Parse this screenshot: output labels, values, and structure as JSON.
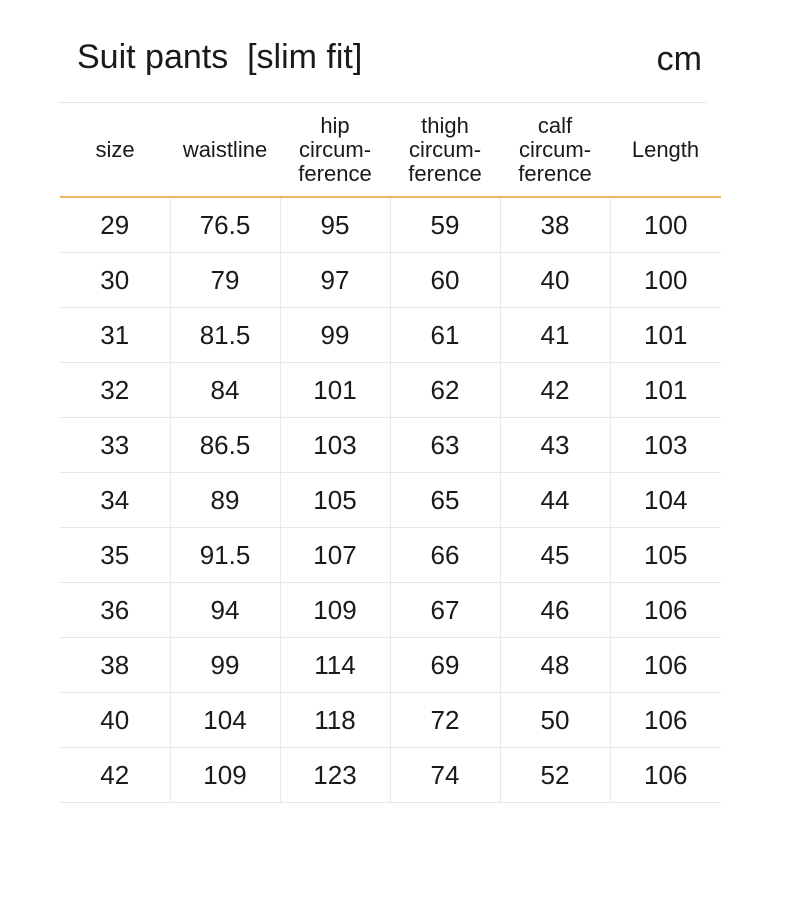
{
  "header": {
    "title": "Suit pants  [slim fit]",
    "unit": "cm"
  },
  "colors": {
    "accent_line": "#f2b45c",
    "grid_line": "#e8e8e8",
    "text": "#1a1a1a"
  },
  "table": {
    "columns": [
      "size",
      "waistline",
      "hip\ncircum-\nference",
      "thigh\ncircum-\nference",
      "calf\ncircum-\nference",
      "Length"
    ],
    "rows": [
      [
        "29",
        "76.5",
        "95",
        "59",
        "38",
        "100"
      ],
      [
        "30",
        "79",
        "97",
        "60",
        "40",
        "100"
      ],
      [
        "31",
        "81.5",
        "99",
        "61",
        "41",
        "101"
      ],
      [
        "32",
        "84",
        "101",
        "62",
        "42",
        "101"
      ],
      [
        "33",
        "86.5",
        "103",
        "63",
        "43",
        "103"
      ],
      [
        "34",
        "89",
        "105",
        "65",
        "44",
        "104"
      ],
      [
        "35",
        "91.5",
        "107",
        "66",
        "45",
        "105"
      ],
      [
        "36",
        "94",
        "109",
        "67",
        "46",
        "106"
      ],
      [
        "38",
        "99",
        "114",
        "69",
        "48",
        "106"
      ],
      [
        "40",
        "104",
        "118",
        "72",
        "50",
        "106"
      ],
      [
        "42",
        "109",
        "123",
        "74",
        "52",
        "106"
      ]
    ]
  }
}
